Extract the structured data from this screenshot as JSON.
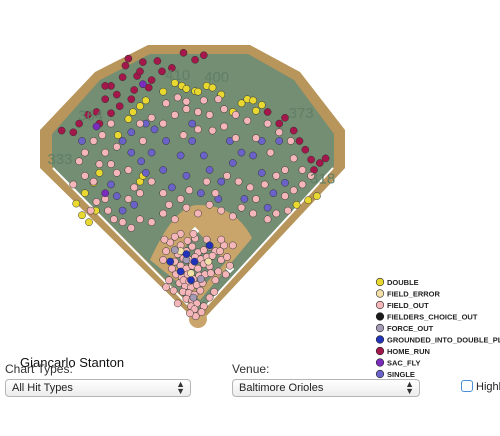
{
  "chart_data": {
    "type": "scatter",
    "player_name": "Giancarlo Stanton",
    "distance_markers": [
      {
        "label": "410",
        "x": -35,
        "y": 405
      },
      {
        "label": "400",
        "x": 32,
        "y": 402
      },
      {
        "label": "373",
        "x": 178,
        "y": 340
      },
      {
        "label": "364",
        "x": -185,
        "y": 335
      },
      {
        "label": "333",
        "x": -238,
        "y": 260
      },
      {
        "label": "318",
        "x": 215,
        "y": 227
      }
    ],
    "legend": [
      {
        "type": "DOUBLE",
        "color": "#e8d830"
      },
      {
        "type": "FIELD_ERROR",
        "color": "#f2e0a8"
      },
      {
        "type": "FIELD_OUT",
        "color": "#f4b6b8"
      },
      {
        "type": "FIELDERS_CHOICE_OUT",
        "color": "#1a1a1a"
      },
      {
        "type": "FORCE_OUT",
        "color": "#a39ab6"
      },
      {
        "type": "GROUNDED_INTO_DOUBLE_PLAY",
        "color": "#2233bb"
      },
      {
        "type": "HOME_RUN",
        "color": "#a3174a"
      },
      {
        "type": "SAC_FLY",
        "color": "#7a2cbf"
      },
      {
        "type": "SINGLE",
        "color": "#6a62c8"
      }
    ],
    "series": [
      {
        "type": "HOME_RUN",
        "points": [
          [
            -120,
            442
          ],
          [
            -95,
            436
          ],
          [
            -70,
            438
          ],
          [
            -45,
            426
          ],
          [
            -130,
            410
          ],
          [
            -105,
            412
          ],
          [
            -80,
            405
          ],
          [
            -150,
            395
          ],
          [
            -160,
            372
          ],
          [
            -140,
            380
          ],
          [
            -110,
            388
          ],
          [
            -85,
            392
          ],
          [
            -175,
            350
          ],
          [
            -150,
            348
          ],
          [
            -205,
            330
          ],
          [
            -215,
            315
          ],
          [
            -190,
            345
          ],
          [
            -235,
            318
          ],
          [
            -62,
            420
          ],
          [
            -25,
            452
          ],
          [
            -5,
            440
          ],
          [
            10,
            448
          ],
          [
            -125,
            430
          ],
          [
            -100,
            420
          ],
          [
            175,
            300
          ],
          [
            185,
            285
          ],
          [
            195,
            268
          ],
          [
            210,
            262
          ],
          [
            220,
            270
          ],
          [
            200,
            250
          ],
          [
            165,
            318
          ],
          [
            140,
            330
          ],
          [
            150,
            340
          ],
          [
            120,
            350
          ],
          [
            -135,
            360
          ],
          [
            -115,
            372
          ],
          [
            -160,
            395
          ],
          [
            -170,
            330
          ]
        ]
      },
      {
        "type": "DOUBLE",
        "points": [
          [
            -40,
            400
          ],
          [
            -28,
            395
          ],
          [
            15,
            395
          ],
          [
            25,
            392
          ],
          [
            -60,
            385
          ],
          [
            -90,
            370
          ],
          [
            -100,
            360
          ],
          [
            -112,
            350
          ],
          [
            -120,
            338
          ],
          [
            -138,
            310
          ],
          [
            -170,
            245
          ],
          [
            -180,
            228
          ],
          [
            -195,
            210
          ],
          [
            -210,
            192
          ],
          [
            -200,
            172
          ],
          [
            -188,
            160
          ],
          [
            -176,
            180
          ],
          [
            75,
            365
          ],
          [
            85,
            372
          ],
          [
            95,
            370
          ],
          [
            110,
            362
          ],
          [
            60,
            350
          ],
          [
            100,
            352
          ],
          [
            205,
            205
          ],
          [
            190,
            198
          ],
          [
            170,
            190
          ],
          [
            -20,
            390
          ],
          [
            -5,
            386
          ],
          [
            0,
            385
          ],
          [
            40,
            380
          ],
          [
            -100,
            230
          ],
          [
            -95,
            240
          ]
        ]
      },
      {
        "type": "SINGLE",
        "points": [
          [
            -130,
            300
          ],
          [
            -115,
            280
          ],
          [
            -98,
            265
          ],
          [
            -90,
            245
          ],
          [
            -150,
            225
          ],
          [
            -140,
            205
          ],
          [
            -130,
            180
          ],
          [
            -110,
            190
          ],
          [
            -45,
            220
          ],
          [
            -20,
            240
          ],
          [
            -30,
            275
          ],
          [
            -10,
            300
          ],
          [
            10,
            275
          ],
          [
            20,
            250
          ],
          [
            40,
            230
          ],
          [
            60,
            262
          ],
          [
            75,
            280
          ],
          [
            95,
            275
          ],
          [
            110,
            245
          ],
          [
            130,
            210
          ],
          [
            150,
            228
          ],
          [
            -55,
            300
          ],
          [
            -75,
            320
          ],
          [
            -90,
            330
          ],
          [
            -80,
            280
          ],
          [
            5,
            210
          ],
          [
            35,
            200
          ],
          [
            -115,
            315
          ],
          [
            -200,
            300
          ],
          [
            80,
            200
          ],
          [
            120,
            185
          ],
          [
            -60,
            250
          ],
          [
            140,
            300
          ],
          [
            110,
            300
          ],
          [
            55,
            300
          ],
          [
            -10,
            330
          ]
        ]
      },
      {
        "type": "FIELD_OUT",
        "points": [
          [
            -100,
            330
          ],
          [
            -80,
            340
          ],
          [
            -60,
            330
          ],
          [
            -40,
            345
          ],
          [
            -20,
            355
          ],
          [
            0,
            350
          ],
          [
            20,
            345
          ],
          [
            45,
            355
          ],
          [
            65,
            345
          ],
          [
            85,
            335
          ],
          [
            120,
            330
          ],
          [
            140,
            315
          ],
          [
            160,
            300
          ],
          [
            -150,
            330
          ],
          [
            -165,
            310
          ],
          [
            -180,
            300
          ],
          [
            -195,
            280
          ],
          [
            -205,
            265
          ],
          [
            -160,
            280
          ],
          [
            -170,
            260
          ],
          [
            -150,
            260
          ],
          [
            -140,
            245
          ],
          [
            -120,
            250
          ],
          [
            -110,
            220
          ],
          [
            -175,
            195
          ],
          [
            -155,
            180
          ],
          [
            -160,
            200
          ],
          [
            -195,
            240
          ],
          [
            -215,
            225
          ],
          [
            -185,
            180
          ],
          [
            -120,
            200
          ],
          [
            -100,
            210
          ],
          [
            -80,
            230
          ],
          [
            -60,
            210
          ],
          [
            -50,
            190
          ],
          [
            -30,
            200
          ],
          [
            -15,
            215
          ],
          [
            15,
            230
          ],
          [
            30,
            210
          ],
          [
            50,
            240
          ],
          [
            70,
            230
          ],
          [
            90,
            220
          ],
          [
            100,
            200
          ],
          [
            115,
            225
          ],
          [
            135,
            240
          ],
          [
            150,
            250
          ],
          [
            165,
            270
          ],
          [
            180,
            250
          ],
          [
            195,
            240
          ],
          [
            180,
            225
          ],
          [
            165,
            215
          ],
          [
            150,
            205
          ],
          [
            155,
            180
          ],
          [
            135,
            175
          ],
          [
            120,
            165
          ],
          [
            95,
            175
          ],
          [
            75,
            185
          ],
          [
            60,
            170
          ],
          [
            40,
            180
          ],
          [
            20,
            190
          ],
          [
            0,
            175
          ],
          [
            -20,
            185
          ],
          [
            -40,
            165
          ],
          [
            -60,
            175
          ],
          [
            -80,
            160
          ],
          [
            -100,
            165
          ],
          [
            -115,
            150
          ],
          [
            -130,
            160
          ],
          [
            -145,
            165
          ],
          [
            -25,
            310
          ],
          [
            0,
            320
          ],
          [
            25,
            318
          ],
          [
            45,
            325
          ],
          [
            -35,
            375
          ],
          [
            -55,
            365
          ],
          [
            -20,
            368
          ],
          [
            10,
            370
          ],
          [
            35,
            372
          ],
          [
            -180,
            230
          ],
          [
            -140,
            290
          ],
          [
            100,
            305
          ],
          [
            125,
            280
          ],
          [
            65,
            305
          ],
          [
            -95,
            300
          ],
          [
            -30,
            120
          ],
          [
            -20,
            110
          ],
          [
            -10,
            118
          ],
          [
            0,
            108
          ],
          [
            10,
            112
          ],
          [
            20,
            118
          ],
          [
            30,
            110
          ],
          [
            -25,
            98
          ],
          [
            -15,
            95
          ],
          [
            -5,
            100
          ],
          [
            5,
            96
          ],
          [
            15,
            100
          ],
          [
            25,
            102
          ],
          [
            -35,
            105
          ],
          [
            -40,
            92
          ],
          [
            -30,
            85
          ],
          [
            -20,
            80
          ],
          [
            -10,
            85
          ],
          [
            0,
            80
          ],
          [
            10,
            88
          ],
          [
            20,
            84
          ],
          [
            -45,
            80
          ],
          [
            -38,
            70
          ],
          [
            -28,
            65
          ],
          [
            -18,
            70
          ],
          [
            -8,
            62
          ],
          [
            2,
            68
          ],
          [
            12,
            70
          ],
          [
            22,
            72
          ],
          [
            -32,
            55
          ],
          [
            -22,
            50
          ],
          [
            -12,
            48
          ],
          [
            -2,
            52
          ],
          [
            8,
            55
          ],
          [
            -26,
            40
          ],
          [
            -16,
            38
          ],
          [
            -6,
            35
          ],
          [
            4,
            42
          ],
          [
            -20,
            28
          ],
          [
            -10,
            25
          ],
          [
            -2,
            20
          ],
          [
            -12,
            15
          ],
          [
            -6,
            10
          ],
          [
            -50,
            60
          ],
          [
            -55,
            48
          ],
          [
            -42,
            42
          ],
          [
            30,
            60
          ],
          [
            35,
            75
          ],
          [
            40,
            95
          ],
          [
            38,
            110
          ],
          [
            50,
            100
          ],
          [
            55,
            85
          ],
          [
            48,
            70
          ],
          [
            45,
            120
          ],
          [
            -48,
            125
          ],
          [
            -55,
            110
          ],
          [
            -60,
            95
          ],
          [
            -58,
            130
          ],
          [
            40,
            130
          ],
          [
            15,
            130
          ],
          [
            -5,
            132
          ],
          [
            -18,
            128
          ],
          [
            -8,
            140
          ],
          [
            -25,
            60
          ],
          [
            -15,
            58
          ],
          [
            -35,
            20
          ],
          [
            10,
            15
          ],
          [
            20,
            30
          ],
          [
            28,
            40
          ],
          [
            -30,
            140
          ],
          [
            -40,
            135
          ],
          [
            60,
            120
          ],
          [
            -4,
            -2
          ],
          [
            6,
            5
          ],
          [
            -14,
            3
          ]
        ]
      },
      {
        "type": "FIELD_ERROR",
        "points": [
          [
            -12,
            72
          ],
          [
            18,
            92
          ],
          [
            -30,
            110
          ]
        ]
      },
      {
        "type": "FORCE_OUT",
        "points": [
          [
            -20,
            95
          ],
          [
            5,
            62
          ],
          [
            -40,
            112
          ],
          [
            -8,
            30
          ]
        ]
      },
      {
        "type": "GROUNDED_INTO_DOUBLE_PLAY",
        "points": [
          [
            -20,
            105
          ],
          [
            -6,
            92
          ],
          [
            -48,
            92
          ],
          [
            -12,
            60
          ],
          [
            20,
            120
          ],
          [
            -30,
            75
          ]
        ]
      },
      {
        "type": "SAC_FLY",
        "points": [
          [
            -175,
            325
          ],
          [
            -95,
            398
          ],
          [
            -160,
            210
          ]
        ]
      },
      {
        "type": "FIELDERS_CHOICE_OUT",
        "points": []
      }
    ]
  },
  "controls": {
    "chart_types_label": "Chart Types:",
    "chart_types_value": "All Hit Types",
    "venue_label": "Venue:",
    "venue_value": "Baltimore Orioles",
    "highlight_label": "Highl"
  }
}
